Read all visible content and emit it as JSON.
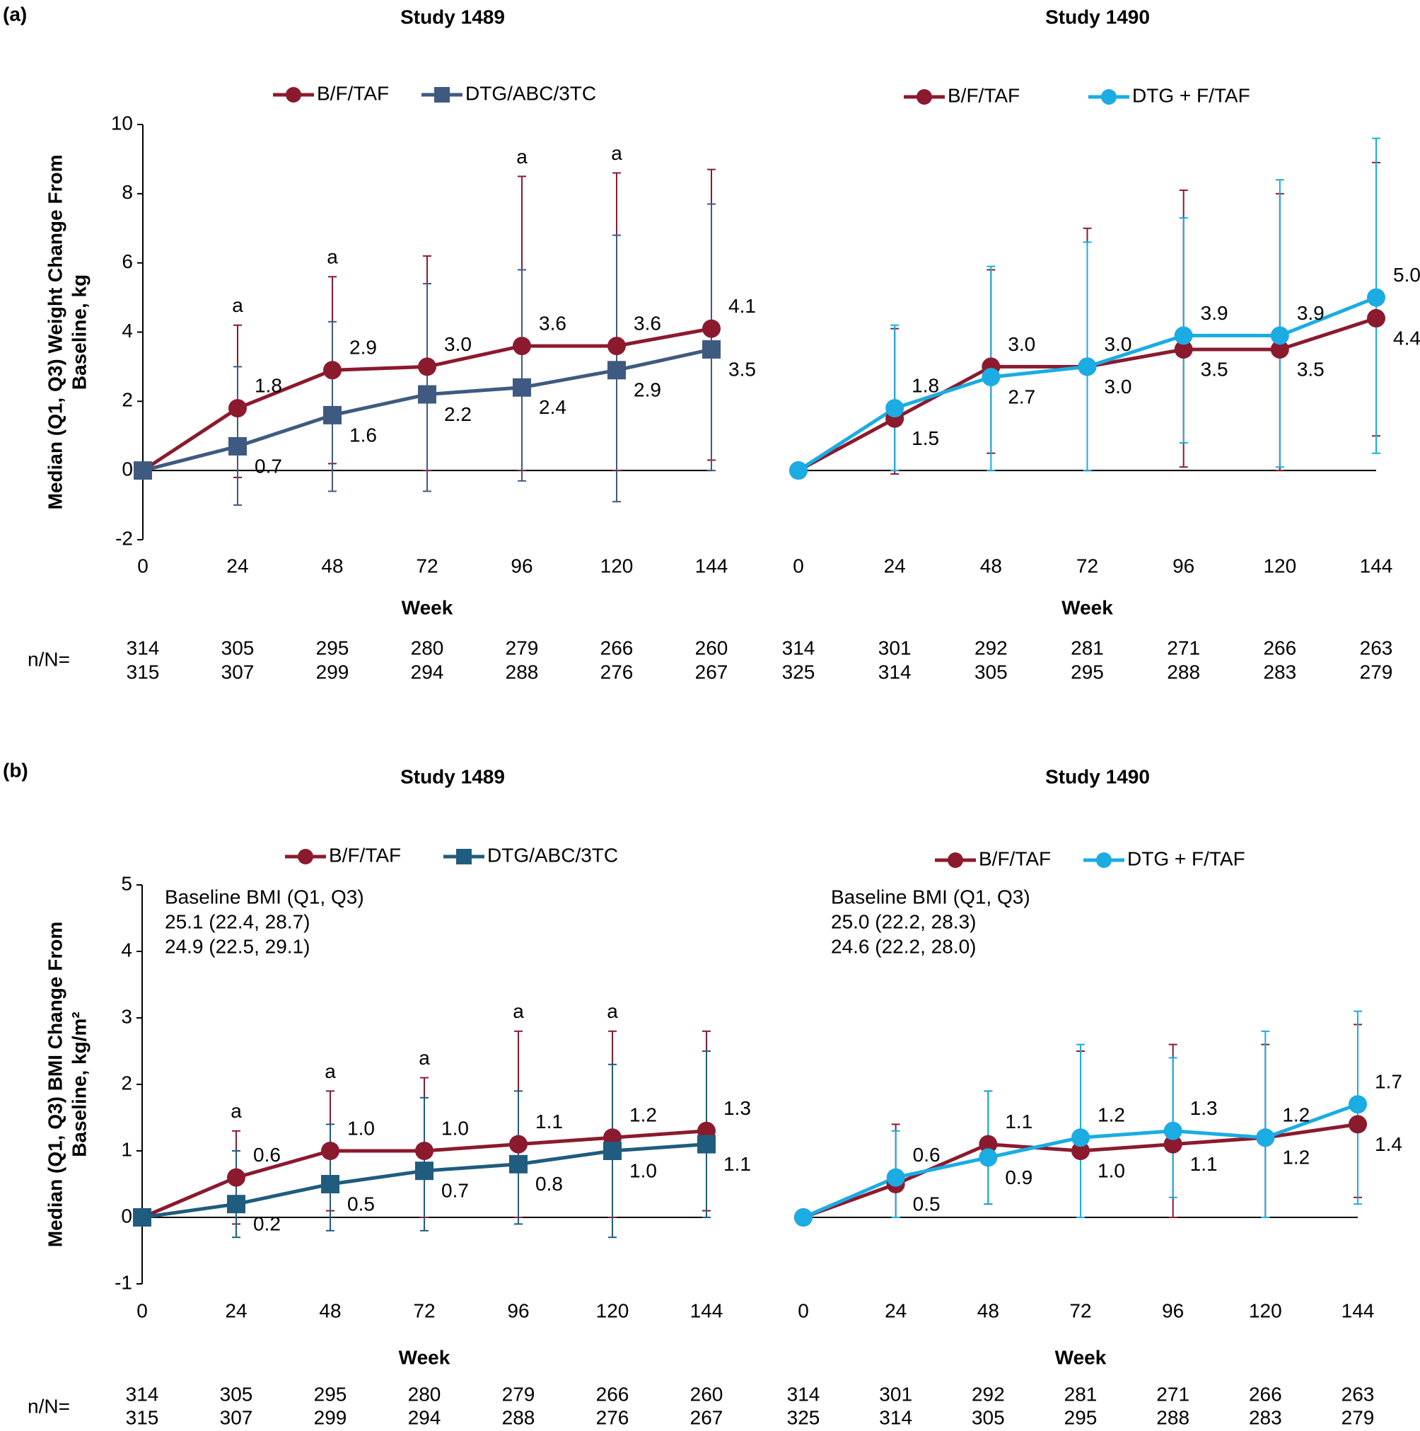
{
  "chart_data": [
    {
      "type": "line",
      "panel": "(a)",
      "title": "Study 1489",
      "xlabel": "Week",
      "ylabel": [
        "Median (Q1, Q3) Weight Change From",
        "Baseline, kg"
      ],
      "x": [
        0,
        24,
        48,
        72,
        96,
        120,
        144
      ],
      "xlim": [
        0,
        144
      ],
      "xticks": [
        0,
        24,
        48,
        72,
        96,
        120,
        144
      ],
      "ylim": [
        -2,
        10
      ],
      "yticks": [
        -2,
        0,
        2,
        4,
        6,
        8,
        10
      ],
      "n_label": "n/N=",
      "annotations": [
        {
          "x": 24,
          "text": "a"
        },
        {
          "x": 48,
          "text": "a"
        },
        {
          "x": 96,
          "text": "a"
        },
        {
          "x": 120,
          "text": "a"
        }
      ],
      "series": [
        {
          "name": "B/F/TAF",
          "color": "#8b1a2e",
          "marker": "circle",
          "values": [
            0,
            1.8,
            2.9,
            3.0,
            3.6,
            3.6,
            4.1
          ],
          "value_labels": [
            null,
            "1.8",
            "2.9",
            "3.0",
            "3.6",
            "3.6",
            "4.1"
          ],
          "q1": [
            null,
            -0.2,
            0.2,
            0,
            0,
            0,
            0.3
          ],
          "q3": [
            null,
            4.2,
            5.6,
            6.2,
            8.5,
            8.6,
            8.7
          ],
          "n": [
            314,
            305,
            295,
            280,
            279,
            266,
            260
          ]
        },
        {
          "name": "DTG/ABC/3TC",
          "color": "#3f5a80",
          "marker": "square",
          "values": [
            0,
            0.7,
            1.6,
            2.2,
            2.4,
            2.9,
            3.5
          ],
          "value_labels": [
            null,
            "0.7",
            "1.6",
            "2.2",
            "2.4",
            "2.9",
            "3.5"
          ],
          "q1": [
            null,
            -1.0,
            -0.6,
            -0.6,
            -0.3,
            -0.9,
            0
          ],
          "q3": [
            null,
            3.0,
            4.3,
            5.4,
            5.8,
            6.8,
            7.7
          ],
          "n": [
            315,
            307,
            299,
            294,
            288,
            276,
            267
          ]
        }
      ]
    },
    {
      "type": "line",
      "title": "Study 1490",
      "xlabel": "Week",
      "x": [
        0,
        24,
        48,
        72,
        96,
        120,
        144
      ],
      "xlim": [
        0,
        144
      ],
      "xticks": [
        0,
        24,
        48,
        72,
        96,
        120,
        144
      ],
      "ylim": [
        -2,
        10
      ],
      "series": [
        {
          "name": "B/F/TAF",
          "color": "#8b1a2e",
          "marker": "circle",
          "values": [
            0,
            1.5,
            3.0,
            3.0,
            3.5,
            3.5,
            4.4
          ],
          "value_labels": [
            null,
            "1.5",
            "3.0",
            "3.0",
            "3.5",
            "3.5",
            "4.4"
          ],
          "q1": [
            null,
            -0.1,
            0.5,
            0,
            0.1,
            0,
            1.0
          ],
          "q3": [
            null,
            4.1,
            5.8,
            7.0,
            8.1,
            8.0,
            8.9
          ],
          "n": [
            314,
            301,
            292,
            281,
            271,
            266,
            263
          ]
        },
        {
          "name": "DTG + F/TAF",
          "color": "#1aace3",
          "marker": "circle",
          "values": [
            0,
            1.8,
            2.7,
            3.0,
            3.9,
            3.9,
            5.0
          ],
          "value_labels": [
            null,
            "1.8",
            "2.7",
            "3.0",
            "3.9",
            "3.9",
            "5.0"
          ],
          "q1": [
            null,
            0,
            0,
            0,
            0.8,
            0.1,
            0.5
          ],
          "q3": [
            null,
            4.2,
            5.9,
            6.6,
            7.3,
            8.4,
            9.6
          ],
          "n": [
            325,
            314,
            305,
            295,
            288,
            283,
            279
          ]
        }
      ]
    },
    {
      "type": "line",
      "panel": "(b)",
      "title": "Study 1489",
      "xlabel": "Week",
      "ylabel": [
        "Median (Q1, Q3) BMI Change From",
        "Baseline, kg/m²"
      ],
      "x": [
        0,
        24,
        48,
        72,
        96,
        120,
        144
      ],
      "xlim": [
        0,
        144
      ],
      "xticks": [
        0,
        24,
        48,
        72,
        96,
        120,
        144
      ],
      "ylim": [
        -1,
        5
      ],
      "yticks": [
        -1,
        0,
        1,
        2,
        3,
        4,
        5
      ],
      "n_label": "n/N=",
      "baseline_title": "Baseline BMI (Q1, Q3)",
      "annotations": [
        {
          "x": 24,
          "text": "a"
        },
        {
          "x": 48,
          "text": "a"
        },
        {
          "x": 72,
          "text": "a"
        },
        {
          "x": 96,
          "text": "a"
        },
        {
          "x": 120,
          "text": "a"
        }
      ],
      "series": [
        {
          "name": "B/F/TAF",
          "color": "#8b1a2e",
          "marker": "circle",
          "baseline": "25.1 (22.4, 28.7)",
          "values": [
            0,
            0.6,
            1.0,
            1.0,
            1.1,
            1.2,
            1.3
          ],
          "value_labels": [
            null,
            "0.6",
            "1.0",
            "1.0",
            "1.1",
            "1.2",
            "1.3"
          ],
          "q1": [
            null,
            -0.1,
            0.1,
            0,
            0,
            0,
            0.1
          ],
          "q3": [
            null,
            1.3,
            1.9,
            2.1,
            2.8,
            2.8,
            2.8
          ],
          "n": [
            314,
            305,
            295,
            280,
            279,
            266,
            260
          ]
        },
        {
          "name": "DTG/ABC/3TC",
          "color": "#1f5c7e",
          "marker": "square",
          "baseline": "24.9 (22.5, 29.1)",
          "values": [
            0,
            0.2,
            0.5,
            0.7,
            0.8,
            1.0,
            1.1
          ],
          "value_labels": [
            null,
            "0.2",
            "0.5",
            "0.7",
            "0.8",
            "1.0",
            "1.1"
          ],
          "q1": [
            null,
            -0.3,
            -0.2,
            -0.2,
            -0.1,
            -0.3,
            0
          ],
          "q3": [
            null,
            1.0,
            1.4,
            1.8,
            1.9,
            2.3,
            2.5
          ],
          "n": [
            315,
            307,
            299,
            294,
            288,
            276,
            267
          ]
        }
      ]
    },
    {
      "type": "line",
      "title": "Study 1490",
      "xlabel": "Week",
      "x": [
        0,
        24,
        48,
        72,
        96,
        120,
        144
      ],
      "xlim": [
        0,
        144
      ],
      "xticks": [
        0,
        24,
        48,
        72,
        96,
        120,
        144
      ],
      "ylim": [
        -1,
        5
      ],
      "baseline_title": "Baseline BMI (Q1, Q3)",
      "series": [
        {
          "name": "B/F/TAF",
          "color": "#8b1a2e",
          "marker": "circle",
          "baseline": "25.0 (22.2, 28.3)",
          "values": [
            0,
            0.5,
            1.1,
            1.0,
            1.1,
            1.2,
            1.4
          ],
          "value_labels": [
            null,
            "0.5",
            "1.1",
            "1.0",
            "1.1",
            "1.2",
            "1.4"
          ],
          "q1": [
            null,
            0,
            0.2,
            0,
            0,
            0,
            0.3
          ],
          "q3": [
            null,
            1.4,
            1.9,
            2.5,
            2.6,
            2.6,
            2.9
          ],
          "n": [
            314,
            301,
            292,
            281,
            271,
            266,
            263
          ]
        },
        {
          "name": "DTG + F/TAF",
          "color": "#1aace3",
          "marker": "circle",
          "baseline": "24.6 (22.2, 28.0)",
          "values": [
            0,
            0.6,
            0.9,
            1.2,
            1.3,
            1.2,
            1.7
          ],
          "value_labels": [
            null,
            "0.6",
            "0.9",
            "1.2",
            "1.3",
            "1.2",
            "1.7"
          ],
          "q1": [
            null,
            0,
            0.2,
            0,
            0.3,
            0,
            0.2
          ],
          "q3": [
            null,
            1.3,
            1.9,
            2.6,
            2.4,
            2.8,
            3.1
          ],
          "n": [
            325,
            314,
            305,
            295,
            288,
            283,
            279
          ]
        }
      ]
    }
  ]
}
